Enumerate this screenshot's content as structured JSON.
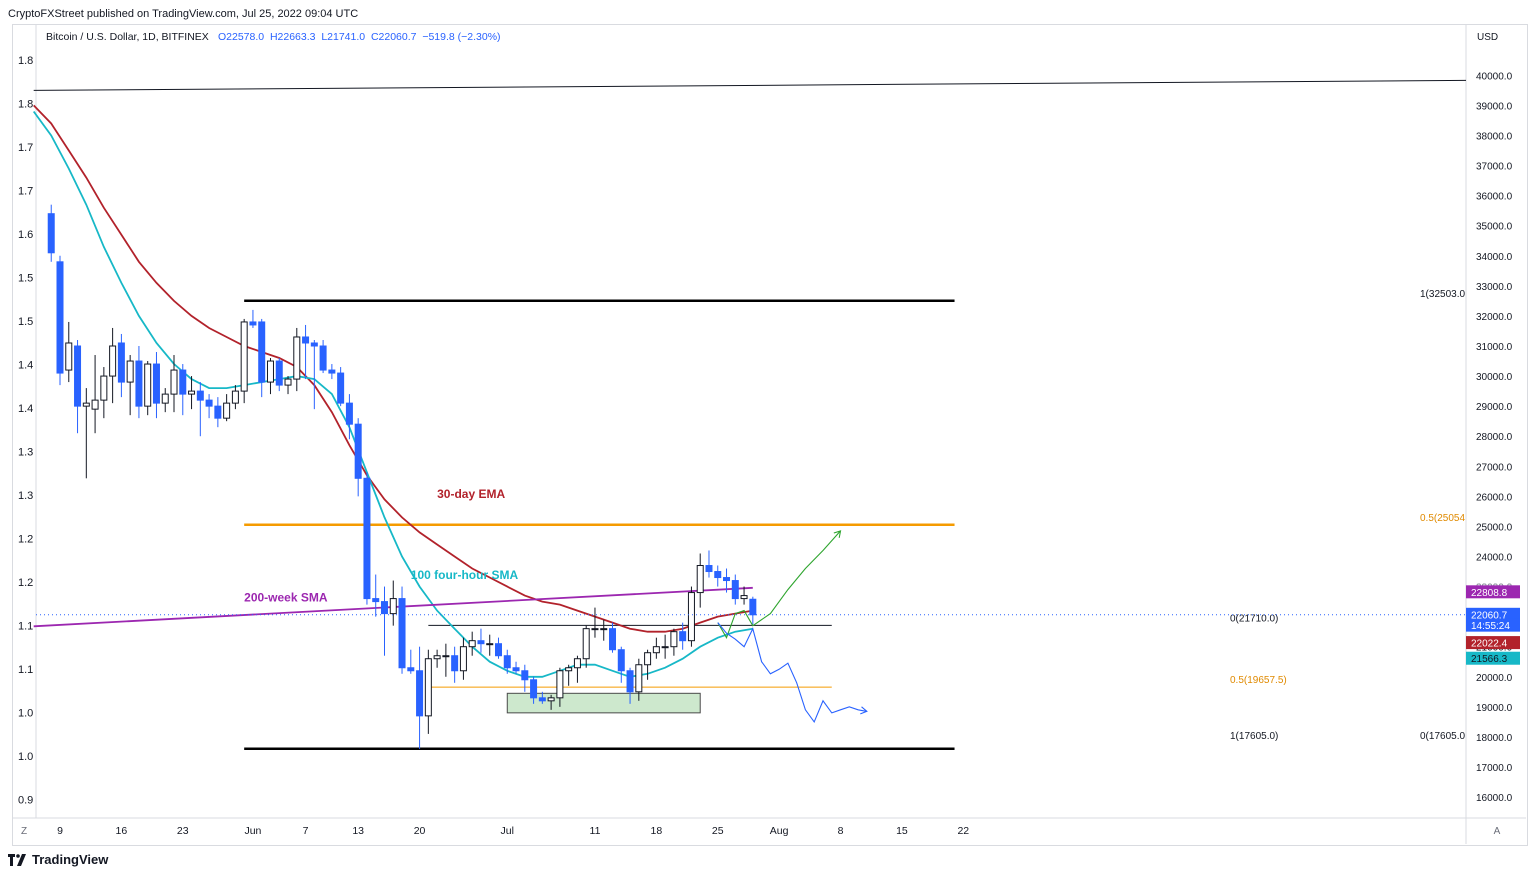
{
  "header": {
    "publisher_line": "CryptoFXStreet published on TradingView.com, Jul 25, 2022 09:04 UTC"
  },
  "symbol": {
    "title": "Bitcoin / U.S. Dollar, 1D, BITFINEX",
    "ohlc": "O22578.0  H22663.3  L21741.0  C22060.7  −519.8 (−2.30%)"
  },
  "footer": {
    "brand": "TradingView",
    "logo_icon": "tradingview-logo-icon"
  },
  "colors": {
    "bull": "#ffffff",
    "bear": "#2962ff",
    "ema": "#b2222b",
    "sma100": "#17b8c7",
    "sma200w": "#9c27b0",
    "fib": "#f59b00",
    "box": "#cde8cd"
  },
  "chart_data": {
    "type": "candlestick",
    "title": "Bitcoin / U.S. Dollar, 1D, BITFINEX",
    "price_axis": {
      "currency": "USD",
      "ticks": [
        16000,
        17000,
        18000,
        19000,
        20000,
        21000,
        22000,
        23000,
        24000,
        25000,
        26000,
        27000,
        28000,
        29000,
        30000,
        31000,
        32000,
        33000,
        34000,
        35000,
        36000,
        37000,
        38000,
        39000,
        40000
      ],
      "tick_labels": [
        "16000.0",
        "17000.0",
        "18000.0",
        "19000.0",
        "20000.0",
        "21000.0",
        "22000.0",
        "23000.0",
        "24000.0",
        "25000.0",
        "26000.0",
        "27000.0",
        "28000.0",
        "29000.0",
        "30000.0",
        "31000.0",
        "32000.0",
        "33000.0",
        "34000.0",
        "35000.0",
        "36000.0",
        "37000.0",
        "38000.0",
        "39000.0",
        "40000.0"
      ],
      "ylim": [
        15200,
        41400
      ]
    },
    "left_axis": {
      "ticks": [
        "1.8",
        "1.8",
        "1.7",
        "1.7",
        "1.6",
        "1.5",
        "1.5",
        "1.4",
        "1.4",
        "1.3",
        "1.3",
        "1.2",
        "1.2",
        "1.1",
        "1.1",
        "1.0",
        "1.0",
        "0.9"
      ]
    },
    "time_axis": {
      "labels": [
        {
          "day": 3,
          "text": "9"
        },
        {
          "day": 10,
          "text": "16"
        },
        {
          "day": 17,
          "text": "23"
        },
        {
          "day": 25,
          "text": "Jun"
        },
        {
          "day": 31,
          "text": "7"
        },
        {
          "day": 37,
          "text": "13"
        },
        {
          "day": 44,
          "text": "20"
        },
        {
          "day": 54,
          "text": "Jul"
        },
        {
          "day": 64,
          "text": "11"
        },
        {
          "day": 71,
          "text": "18"
        },
        {
          "day": 78,
          "text": "25"
        },
        {
          "day": 85,
          "text": "Aug"
        },
        {
          "day": 92,
          "text": "8"
        },
        {
          "day": 99,
          "text": "15"
        },
        {
          "day": 106,
          "text": "22"
        }
      ],
      "day_origin": "2022-05-07"
    },
    "candles": [
      [
        2,
        35400,
        35700,
        33800,
        34100
      ],
      [
        3,
        33800,
        34000,
        29700,
        30100
      ],
      [
        4,
        30200,
        31800,
        29800,
        31100
      ],
      [
        5,
        31000,
        31200,
        28100,
        29000
      ],
      [
        6,
        29000,
        29600,
        26600,
        29100
      ],
      [
        7,
        28900,
        30700,
        28100,
        29200
      ],
      [
        8,
        29200,
        30300,
        28600,
        30000
      ],
      [
        9,
        30000,
        31600,
        29100,
        31000
      ],
      [
        10,
        31100,
        31400,
        29300,
        29800
      ],
      [
        11,
        29800,
        30700,
        28700,
        30500
      ],
      [
        12,
        30500,
        31000,
        28600,
        29000
      ],
      [
        13,
        29000,
        30500,
        28700,
        30400
      ],
      [
        14,
        30400,
        30800,
        28600,
        29100
      ],
      [
        15,
        29100,
        29600,
        28800,
        29400
      ],
      [
        16,
        29400,
        30700,
        28800,
        30200
      ],
      [
        17,
        30200,
        30400,
        28700,
        29400
      ],
      [
        18,
        29400,
        30000,
        28900,
        29500
      ],
      [
        19,
        29500,
        29800,
        28000,
        29200
      ],
      [
        20,
        29200,
        29400,
        28600,
        29000
      ],
      [
        21,
        29000,
        29300,
        28300,
        28600
      ],
      [
        22,
        28600,
        29400,
        28500,
        29100
      ],
      [
        23,
        29100,
        29700,
        28900,
        29500
      ],
      [
        24,
        29500,
        31900,
        29100,
        31800
      ],
      [
        25,
        31800,
        32200,
        31600,
        31700
      ],
      [
        26,
        31800,
        31900,
        29300,
        29800
      ],
      [
        27,
        29800,
        30600,
        29400,
        30500
      ],
      [
        28,
        30500,
        30600,
        29500,
        29700
      ],
      [
        29,
        29700,
        30000,
        29400,
        29900
      ],
      [
        30,
        29900,
        31600,
        29500,
        31300
      ],
      [
        31,
        31300,
        31700,
        29900,
        31100
      ],
      [
        32,
        31100,
        31200,
        28900,
        31000
      ],
      [
        33,
        31000,
        31200,
        30100,
        30200
      ],
      [
        34,
        30200,
        30400,
        29900,
        30100
      ],
      [
        35,
        30100,
        30300,
        29000,
        29100
      ],
      [
        36,
        29100,
        29400,
        27900,
        28400
      ],
      [
        37,
        28400,
        28600,
        26000,
        26600
      ],
      [
        38,
        26600,
        26800,
        22400,
        22600
      ],
      [
        39,
        22600,
        23400,
        22000,
        22500
      ],
      [
        40,
        22500,
        23000,
        20700,
        22100
      ],
      [
        41,
        22100,
        23200,
        21700,
        22600
      ],
      [
        42,
        22600,
        23000,
        20100,
        20300
      ],
      [
        43,
        20300,
        20900,
        20100,
        20200
      ],
      [
        44,
        20200,
        21000,
        17600,
        18700
      ],
      [
        45,
        18700,
        20900,
        18100,
        20600
      ],
      [
        46,
        20600,
        20900,
        20300,
        20700
      ],
      [
        47,
        20700,
        21100,
        20000,
        20700
      ],
      [
        48,
        20700,
        21000,
        19800,
        20200
      ],
      [
        49,
        20200,
        21300,
        19900,
        21000
      ],
      [
        50,
        21000,
        21500,
        20700,
        21200
      ],
      [
        51,
        21200,
        21600,
        20800,
        21100
      ],
      [
        52,
        21100,
        21400,
        20700,
        21100
      ],
      [
        53,
        21100,
        21300,
        20600,
        20700
      ],
      [
        54,
        20700,
        20900,
        20100,
        20300
      ],
      [
        55,
        20300,
        20500,
        20100,
        20200
      ],
      [
        56,
        20200,
        20400,
        19500,
        19900
      ],
      [
        57,
        19900,
        20000,
        19100,
        19300
      ],
      [
        58,
        19300,
        19500,
        19100,
        19200
      ],
      [
        59,
        19200,
        19400,
        18900,
        19300
      ],
      [
        60,
        19300,
        20300,
        19000,
        20200
      ],
      [
        61,
        20200,
        20400,
        19700,
        20300
      ],
      [
        62,
        20300,
        20700,
        19800,
        20600
      ],
      [
        63,
        20600,
        21700,
        20300,
        21600
      ],
      [
        64,
        21600,
        22300,
        21300,
        21600
      ],
      [
        65,
        21600,
        21900,
        21200,
        21600
      ],
      [
        66,
        21600,
        21800,
        20800,
        20900
      ],
      [
        67,
        20900,
        21000,
        19800,
        20200
      ],
      [
        68,
        20200,
        20300,
        19100,
        19500
      ],
      [
        69,
        19500,
        20600,
        19200,
        20400
      ],
      [
        70,
        20400,
        20900,
        19900,
        20800
      ],
      [
        71,
        20800,
        21300,
        20600,
        21000
      ],
      [
        72,
        21000,
        21400,
        20600,
        21000
      ],
      [
        73,
        21000,
        21600,
        20700,
        21500
      ],
      [
        74,
        21500,
        21800,
        20900,
        21200
      ],
      [
        75,
        21200,
        23000,
        21000,
        22800
      ],
      [
        76,
        22800,
        24100,
        22300,
        23700
      ],
      [
        77,
        23700,
        24200,
        23300,
        23500
      ],
      [
        78,
        23500,
        23700,
        23000,
        23300
      ],
      [
        79,
        23300,
        23600,
        22800,
        23200
      ],
      [
        80,
        23200,
        23400,
        22400,
        22600
      ],
      [
        81,
        22600,
        23000,
        22400,
        22700
      ],
      [
        82,
        22578,
        22663,
        21741,
        22061
      ]
    ],
    "series": [
      {
        "name": "30-day EMA",
        "color": "#b2222b",
        "x": [
          0,
          2,
          4,
          6,
          8,
          10,
          12,
          14,
          16,
          18,
          20,
          22,
          24,
          26,
          28,
          30,
          32,
          34,
          36,
          38,
          40,
          42,
          44,
          46,
          48,
          50,
          52,
          54,
          56,
          58,
          60,
          62,
          64,
          66,
          68,
          70,
          72,
          74,
          76,
          78,
          80,
          82
        ],
        "y": [
          39000,
          38400,
          37500,
          36600,
          35600,
          34700,
          33800,
          33100,
          32500,
          32000,
          31600,
          31300,
          31000,
          30800,
          30600,
          30300,
          29700,
          28800,
          27700,
          26700,
          25900,
          25300,
          24800,
          24400,
          24000,
          23600,
          23300,
          23000,
          22700,
          22500,
          22400,
          22200,
          22000,
          21800,
          21600,
          21500,
          21500,
          21600,
          21800,
          22000,
          22100,
          22200
        ]
      },
      {
        "name": "100 four-hour SMA",
        "color": "#17b8c7",
        "x": [
          0,
          2,
          4,
          6,
          8,
          10,
          12,
          14,
          16,
          18,
          20,
          22,
          24,
          26,
          28,
          30,
          32,
          34,
          36,
          38,
          40,
          42,
          44,
          46,
          48,
          50,
          52,
          54,
          56,
          58,
          60,
          62,
          64,
          66,
          68,
          70,
          72,
          74,
          76,
          78,
          80,
          82
        ],
        "y": [
          38800,
          38000,
          36900,
          35700,
          34300,
          33100,
          32000,
          31100,
          30400,
          29900,
          29600,
          29600,
          29700,
          29800,
          29900,
          30000,
          29900,
          29400,
          28300,
          26800,
          25300,
          24000,
          23000,
          22200,
          21600,
          21000,
          20500,
          20200,
          20000,
          20000,
          20200,
          20400,
          20400,
          20200,
          20000,
          20100,
          20300,
          20600,
          21000,
          21300,
          21500,
          21600
        ]
      },
      {
        "name": "200-week SMA",
        "color": "#9c27b0",
        "x": [
          0,
          82
        ],
        "y": [
          21680,
          22960
        ]
      }
    ],
    "horizontal_lines": [
      {
        "label": "",
        "y": 39500,
        "x_from": 0,
        "x_to": 117,
        "color": "#131722"
      },
      {
        "label": "1(32503.0",
        "y": 32503,
        "x_from": 24,
        "x_to": 105,
        "color": "#000000"
      },
      {
        "label": "0.5(25054",
        "y": 25054,
        "x_from": 24,
        "x_to": 105,
        "color": "#f59b00"
      },
      {
        "label": "0(21710.0)",
        "y": 21710,
        "x_from": 45,
        "x_to": 91,
        "color": "#131722"
      },
      {
        "label": "0.5(19657.5)",
        "y": 19657.5,
        "x_from": 45,
        "x_to": 91,
        "color": "#f59b00"
      },
      {
        "label": "1(17605.0)",
        "y": 17605,
        "x_from": 24,
        "x_to": 105,
        "color": "#000000"
      },
      {
        "label": "0(17605.0",
        "y": 17605,
        "x_from": 24,
        "x_to": 105,
        "color": "#000000"
      }
    ],
    "zone": {
      "x_from": 54,
      "x_to": 76,
      "y_from": 18800,
      "y_to": 19450
    },
    "projections": [
      {
        "color": "#2ea52e",
        "x": [
          78,
          79,
          80,
          81,
          82,
          84,
          86,
          88,
          90,
          92
        ],
        "y": [
          21800,
          21300,
          22100,
          22200,
          21700,
          22100,
          22900,
          23600,
          24200,
          24850
        ]
      },
      {
        "color": "#2962ff",
        "x": [
          78,
          79,
          80,
          81,
          82,
          83,
          84,
          85,
          86,
          87,
          88,
          89,
          90,
          91,
          92,
          93,
          94,
          95
        ],
        "y": [
          21800,
          21450,
          21250,
          21000,
          21600,
          20500,
          20100,
          20250,
          20450,
          19800,
          18900,
          18500,
          19200,
          18800,
          18900,
          19000,
          18900,
          18850
        ]
      }
    ],
    "annotations": [
      {
        "text": "30-day EMA",
        "x": 46,
        "y": 25950,
        "color": "#b2222b"
      },
      {
        "text": "100 four-hour SMA",
        "x": 43,
        "y": 23250,
        "color": "#17b8c7"
      },
      {
        "text": "200-week SMA",
        "x": 24,
        "y": 22500,
        "color": "#9c27b0"
      }
    ],
    "price_labels": [
      {
        "text": "22808.8",
        "y": 22808.8,
        "color": "#9c27b0",
        "text_color": "#ffffff"
      },
      {
        "text": "22060.7",
        "y": 22060.7,
        "color": "#2962ff",
        "text_color": "#ffffff"
      },
      {
        "text": "14:55:24",
        "y": 21700,
        "color": "#2962ff",
        "text_color": "#ffffff"
      },
      {
        "text": "22022.4",
        "y": 21120,
        "color": "#b2222b",
        "text_color": "#ffffff"
      },
      {
        "text": "21566.3",
        "y": 20600,
        "color": "#17b8c7",
        "text_color": "#131722"
      }
    ],
    "last_price_line": 22060.7,
    "ghost_tick": "23000.0",
    "corner_labels": {
      "left": "Z",
      "right": "A"
    }
  }
}
